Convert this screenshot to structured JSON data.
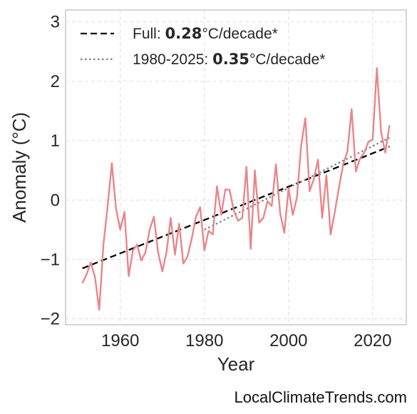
{
  "chart_data": {
    "type": "line",
    "xlabel": "Year",
    "ylabel": "Anomaly (°C)",
    "xlim": [
      1947,
      2028
    ],
    "ylim": [
      -2.1,
      3.2
    ],
    "xticks": [
      "1960",
      "1980",
      "2000",
      "2020"
    ],
    "yticks": [
      "−2",
      "−1",
      "0",
      "1",
      "2",
      "3"
    ],
    "grid": true,
    "legend_position": "top-left",
    "legend": [
      {
        "prefix": "Full: ",
        "bold": "0.28",
        "suffix": "°C/decade*",
        "style": "dashed",
        "color": "#000000"
      },
      {
        "prefix": "1980-2025: ",
        "bold": "0.35",
        "suffix": "°C/decade*",
        "style": "dotted",
        "color": "#808080"
      }
    ],
    "series": [
      {
        "color": "#e8868b",
        "x": [
          1951,
          1952,
          1953,
          1954,
          1955,
          1956,
          1957,
          1958,
          1959,
          1960,
          1961,
          1962,
          1963,
          1964,
          1965,
          1966,
          1967,
          1968,
          1969,
          1970,
          1971,
          1972,
          1973,
          1974,
          1975,
          1976,
          1977,
          1978,
          1979,
          1980,
          1981,
          1982,
          1983,
          1984,
          1985,
          1986,
          1987,
          1988,
          1989,
          1990,
          1991,
          1992,
          1993,
          1994,
          1995,
          1996,
          1997,
          1998,
          1999,
          2000,
          2001,
          2002,
          2003,
          2004,
          2005,
          2006,
          2007,
          2008,
          2009,
          2010,
          2011,
          2012,
          2013,
          2014,
          2015,
          2016,
          2017,
          2018,
          2019,
          2020,
          2021,
          2022,
          2023,
          2024
        ],
        "y": [
          -1.4,
          -1.25,
          -1.05,
          -1.3,
          -1.85,
          -0.75,
          -0.1,
          0.62,
          -0.15,
          -0.5,
          -0.2,
          -1.28,
          -0.85,
          -0.75,
          -1.02,
          -0.88,
          -0.5,
          -0.28,
          -0.88,
          -1.2,
          -0.88,
          -0.3,
          -0.92,
          -0.4,
          -1.07,
          -0.95,
          -0.65,
          -0.28,
          -0.12,
          -0.85,
          -0.52,
          -0.58,
          0.23,
          -0.25,
          0.18,
          0.17,
          -0.18,
          -0.35,
          -0.3,
          0.56,
          -0.82,
          0.5,
          -0.38,
          -0.3,
          -0.02,
          -0.1,
          0.6,
          -0.22,
          -0.55,
          0.2,
          -0.25,
          0.05,
          0.92,
          1.38,
          0.15,
          0.35,
          0.68,
          -0.3,
          0.42,
          -0.58,
          -0.2,
          0.22,
          0.6,
          0.82,
          1.53,
          0.48,
          0.7,
          0.8,
          0.98,
          1.02,
          2.22,
          1.15,
          0.8,
          1.26
        ]
      }
    ],
    "trendlines": [
      {
        "style": "dashed",
        "color": "#000000",
        "x": [
          1951,
          2024
        ],
        "y": [
          -1.15,
          0.9
        ]
      },
      {
        "style": "dotted",
        "color": "#808080",
        "x": [
          1980,
          2024
        ],
        "y": [
          -0.5,
          1.05
        ]
      }
    ]
  },
  "credit": "LocalClimateTrends.com"
}
